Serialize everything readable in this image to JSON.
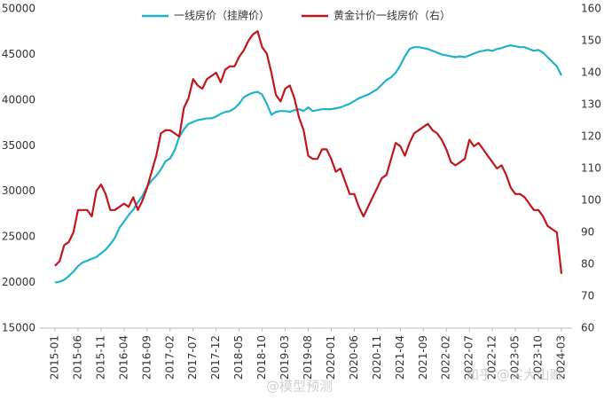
{
  "chart_data": {
    "type": "line",
    "categories": [
      "2015-01",
      null,
      null,
      null,
      null,
      "2015-06",
      null,
      null,
      null,
      null,
      "2015-11",
      null,
      null,
      null,
      null,
      "2016-04",
      null,
      null,
      null,
      null,
      "2016-09",
      null,
      null,
      null,
      null,
      "2017-02",
      null,
      null,
      null,
      null,
      "2017-07",
      null,
      null,
      null,
      null,
      "2017-12",
      null,
      null,
      null,
      null,
      "2018-05",
      null,
      null,
      null,
      null,
      "2018-10",
      null,
      null,
      null,
      null,
      "2019-03",
      null,
      null,
      null,
      null,
      "2019-08",
      null,
      null,
      null,
      null,
      "2020-01",
      null,
      null,
      null,
      null,
      "2020-06",
      null,
      null,
      null,
      null,
      "2020-11",
      null,
      null,
      null,
      null,
      "2021-04",
      null,
      null,
      null,
      null,
      "2021-09",
      null,
      null,
      null,
      null,
      "2022-02",
      null,
      null,
      null,
      null,
      "2022-07",
      null,
      null,
      null,
      null,
      "2022-12",
      null,
      null,
      null,
      null,
      "2023-05",
      null,
      null,
      null,
      null,
      "2023-10",
      null,
      null,
      null,
      null,
      "2024-03"
    ],
    "series": [
      {
        "name": "一线房价（挂牌价）",
        "color": "#1fb3c8",
        "values": [
          20000,
          20100,
          20300,
          20700,
          21200,
          21800,
          22200,
          22400,
          22600,
          22800,
          23200,
          23600,
          24200,
          24900,
          26000,
          26700,
          27400,
          28000,
          28800,
          29500,
          30500,
          31200,
          31700,
          32400,
          33300,
          33600,
          34500,
          36000,
          36800,
          37400,
          37600,
          37800,
          37900,
          38000,
          38000,
          38200,
          38500,
          38700,
          38800,
          39100,
          39600,
          40300,
          40600,
          40800,
          40900,
          40600,
          39600,
          38400,
          38700,
          38800,
          38800,
          38700,
          38900,
          39000,
          38800,
          39200,
          38800,
          38900,
          39000,
          39000,
          39000,
          39100,
          39200,
          39400,
          39600,
          39900,
          40200,
          40400,
          40600,
          40900,
          41200,
          41700,
          42200,
          42500,
          43000,
          43800,
          44800,
          45600,
          45800,
          45800,
          45700,
          45600,
          45400,
          45200,
          45000,
          44900,
          44800,
          44700,
          44800,
          44700,
          44900,
          45100,
          45300,
          45400,
          45500,
          45400,
          45600,
          45700,
          45900,
          46000,
          45900,
          45800,
          45800,
          45600,
          45400,
          45500,
          45200,
          44700,
          44200,
          43700,
          42700
        ]
      },
      {
        "name": "黄金计价一线房价（右）",
        "color": "#c0161d",
        "axis": "y2",
        "values": [
          79.5,
          81,
          86,
          87,
          90,
          97,
          97,
          97,
          95,
          103,
          105,
          102,
          97,
          97,
          98,
          99,
          98,
          101,
          97,
          100,
          104,
          109,
          114,
          121,
          122,
          122,
          121,
          120,
          129,
          132,
          138,
          136,
          135,
          138,
          139,
          140,
          137,
          141,
          142,
          142,
          145,
          147,
          150,
          152,
          153,
          148,
          146,
          140,
          133,
          131,
          135,
          136,
          132,
          126,
          122,
          114,
          113,
          113,
          116,
          116,
          113,
          109,
          110,
          106,
          102,
          102,
          98,
          95,
          98,
          101,
          104,
          107,
          108,
          113,
          118,
          117,
          114,
          118,
          121,
          122,
          123,
          124,
          122,
          121,
          119,
          116,
          112,
          111,
          112,
          113,
          119,
          117,
          118,
          116,
          114,
          112,
          110,
          111,
          108,
          104,
          102,
          102,
          101,
          99,
          97,
          97,
          95,
          92,
          91,
          90,
          77
        ]
      }
    ],
    "ylim": [
      15000,
      50000
    ],
    "yticks": [
      15000,
      20000,
      25000,
      30000,
      35000,
      40000,
      45000,
      50000
    ],
    "y2lim": [
      60,
      160
    ],
    "y2ticks": [
      60,
      70,
      80,
      90,
      100,
      110,
      120,
      130,
      140,
      150,
      160
    ],
    "grid": false,
    "legend": "top",
    "annotations": [
      "@模型预测",
      "知乎 @实大山贼"
    ]
  }
}
